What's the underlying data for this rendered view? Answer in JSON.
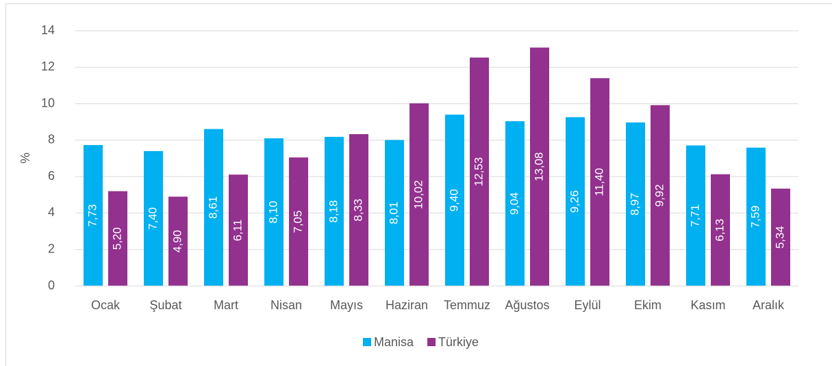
{
  "chart_data": {
    "type": "bar",
    "ylabel": "%",
    "categories": [
      "Ocak",
      "Şubat",
      "Mart",
      "Nisan",
      "Mayıs",
      "Haziran",
      "Temmuz",
      "Ağustos",
      "Eylül",
      "Ekim",
      "Kasım",
      "Aralık"
    ],
    "series": [
      {
        "name": "Manisa",
        "color": "#00b0f0",
        "values": [
          7.73,
          7.4,
          8.61,
          8.1,
          8.18,
          8.01,
          9.4,
          9.04,
          9.26,
          8.97,
          7.71,
          7.59
        ],
        "value_labels": [
          "7,73",
          "7,40",
          "8,61",
          "8,10",
          "8,18",
          "8,01",
          "9,40",
          "9,04",
          "9,26",
          "8,97",
          "7,71",
          "7,59"
        ]
      },
      {
        "name": "Türkiye",
        "color": "#92318e",
        "values": [
          5.2,
          4.9,
          6.11,
          7.05,
          8.33,
          10.02,
          12.53,
          13.08,
          11.4,
          9.92,
          6.13,
          5.34
        ],
        "value_labels": [
          "5,20",
          "4,90",
          "6,11",
          "7,05",
          "8,33",
          "10,02",
          "12,53",
          "13,08",
          "11,40",
          "9,92",
          "6,13",
          "5,34"
        ]
      }
    ],
    "ylim": [
      0,
      14
    ],
    "yticks": [
      0,
      2,
      4,
      6,
      8,
      10,
      12,
      14
    ],
    "grid": true,
    "legend": "bottom"
  }
}
